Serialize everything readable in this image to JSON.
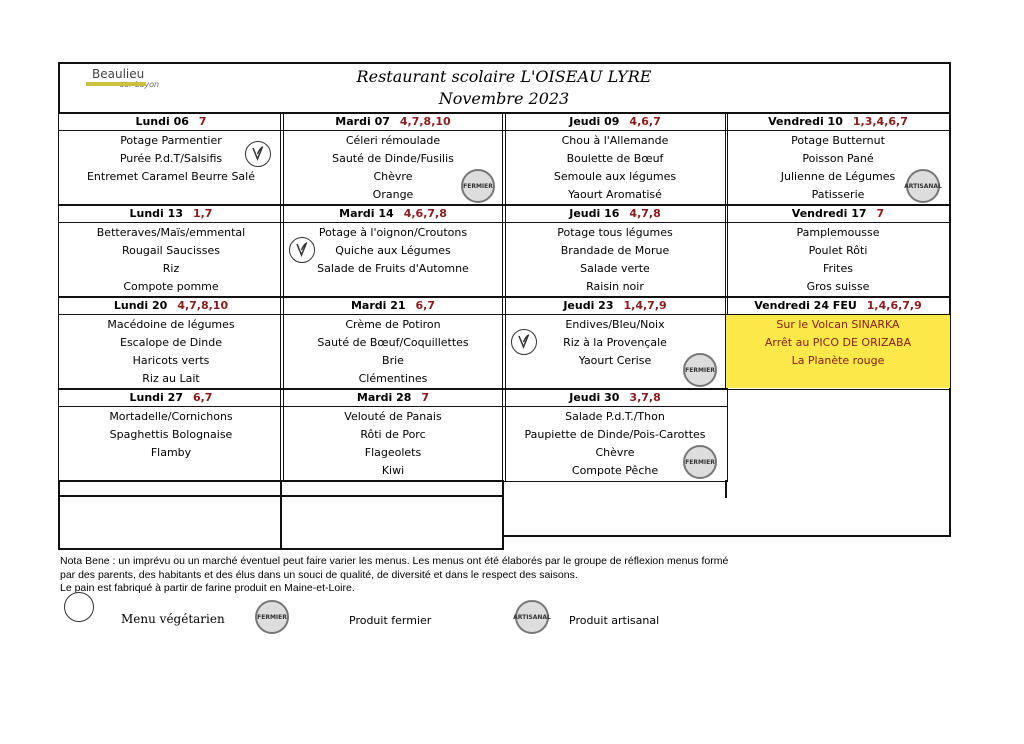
{
  "header": {
    "logo": "Beaulieu",
    "logo_sub": "sur Layon",
    "title": "Restaurant scolaire L'OISEAU LYRE",
    "subtitle": "Novembre 2023"
  },
  "stamps": {
    "fermier": "FERMIER",
    "artisanal": "ARTISANAL"
  },
  "weeks": [
    [
      {
        "day": "Lundi 06",
        "allergens": "7",
        "items": [
          "Potage Parmentier",
          "Purée P.d.T/Salsifis",
          "Entremet Caramel Beurre Salé"
        ],
        "veg": true
      },
      {
        "day": "Mardi 07",
        "allergens": "4,7,8,10",
        "items": [
          "Céleri rémoulade",
          "Sauté de Dinde/Fusilis",
          "Chèvre",
          "Orange"
        ],
        "stamp": "fermier"
      },
      {
        "day": "Jeudi 09",
        "allergens": "4,6,7",
        "items": [
          "Chou à l'Allemande",
          "Boulette de Bœuf",
          "Semoule aux légumes",
          "Yaourt Aromatisé"
        ]
      },
      {
        "day": "Vendredi 10",
        "allergens": "1,3,4,6,7",
        "items": [
          "Potage Butternut",
          "Poisson Pané",
          "Julienne de Légumes",
          "Patisserie"
        ],
        "stamp": "artisanal"
      }
    ],
    [
      {
        "day": "Lundi 13",
        "allergens": "1,7",
        "items": [
          "Betteraves/Maïs/emmental",
          "Rougail Saucisses",
          "Riz",
          "Compote pomme"
        ]
      },
      {
        "day": "Mardi 14",
        "allergens": "4,6,7,8",
        "items": [
          "Potage à l'oignon/Croutons",
          "Quiche aux Légumes",
          "Salade de Fruits d'Automne"
        ],
        "veg": true
      },
      {
        "day": "Jeudi 16",
        "allergens": "4,7,8",
        "items": [
          "Potage tous légumes",
          "Brandade de Morue",
          "Salade verte",
          "Raisin noir"
        ]
      },
      {
        "day": "Vendredi 17",
        "allergens": "7",
        "items": [
          "Pamplemousse",
          "Poulet Rôti",
          "Frites",
          "Gros suisse"
        ]
      }
    ],
    [
      {
        "day": "Lundi 20",
        "allergens": "4,7,8,10",
        "items": [
          "Macédoine de légumes",
          "Escalope de Dinde",
          "Haricots verts",
          "Riz au Lait"
        ]
      },
      {
        "day": "Mardi 21",
        "allergens": "6,7",
        "items": [
          "Crème de Potiron",
          "Sauté de Bœuf/Coquillettes",
          "Brie",
          "Clémentines"
        ]
      },
      {
        "day": "Jeudi 23",
        "allergens": "1,4,7,9",
        "items": [
          "Endives/Bleu/Noix",
          "Riz à la Provençale",
          "Yaourt Cerise"
        ],
        "veg": true,
        "stamp": "fermier"
      },
      {
        "day": "Vendredi 24 FEU",
        "allergens": "1,4,6,7,9",
        "items": [
          "Sur le Volcan SINARKA",
          "Arrêt au PICO DE ORIZABA",
          "La Planète rouge"
        ],
        "highlight": true
      }
    ],
    [
      {
        "day": "Lundi 27",
        "allergens": "6,7",
        "items": [
          "Mortadelle/Cornichons",
          "Spaghettis Bolognaise",
          "Flamby"
        ]
      },
      {
        "day": "Mardi 28",
        "allergens": "7",
        "items": [
          "Velouté de Panais",
          "Rôti de Porc",
          "Flageolets",
          "Kiwi"
        ]
      },
      {
        "day": "Jeudi 30",
        "allergens": "3,7,8",
        "items": [
          "Salade P.d.T./Thon",
          "Paupiette de Dinde/Pois-Carottes",
          "Chèvre",
          "Compote Pêche"
        ],
        "stamp": "fermier"
      }
    ]
  ],
  "note": [
    "Nota Bene : un imprévu ou un marché éventuel peut faire varier les menus. Les menus ont été élaborés par le groupe de réflexion menus formé",
    "par des parents, des habitants et des élus dans un souci de qualité, de diversité et dans le respect des saisons.",
    "Le pain est fabriqué à partir de farine produit en Maine-et-Loire."
  ],
  "legend": {
    "veg": "Menu végétarien",
    "fermier": "Produit fermier",
    "artisanal": "Produit artisanal"
  }
}
